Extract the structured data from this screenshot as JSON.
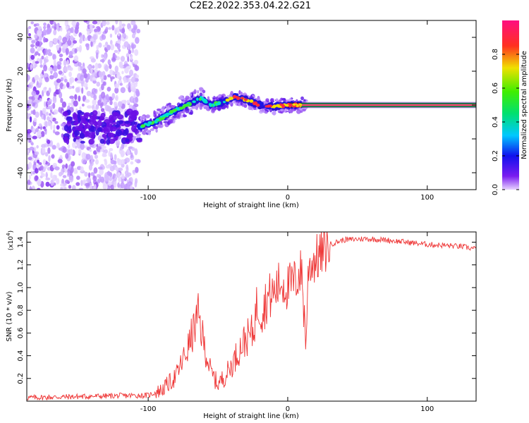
{
  "title": "C2E2.2022.353.04.22.G21",
  "chart_data": [
    {
      "type": "heatmap",
      "xlabel": "Height of straight line (km)",
      "ylabel": "Frequency (Hz)",
      "xlim": [
        -187,
        135
      ],
      "ylim": [
        -50,
        50
      ],
      "xticks": [
        -100,
        0,
        100
      ],
      "xtick_labels": [
        "-100",
        "0",
        "100"
      ],
      "yticks": [
        -40,
        -20,
        0,
        20,
        40
      ],
      "ytick_labels": [
        "-40",
        "-20",
        "0",
        "20",
        "40"
      ],
      "grid": false,
      "colorbar": {
        "label": "Normalized spectral amplitude",
        "range": [
          0,
          1
        ],
        "ticks": [
          0.0,
          0.2,
          0.4,
          0.6,
          0.8
        ],
        "tick_labels": [
          "0.0",
          "0.2",
          "0.4",
          "0.6",
          "0.8"
        ]
      },
      "doppler_trace": {
        "x": [
          -107,
          -95,
          -85,
          -75,
          -62,
          -55,
          -45,
          -38,
          -30,
          -20,
          -10,
          0,
          20,
          60,
          100,
          135
        ],
        "y": [
          -13,
          -10,
          -5,
          -1,
          4,
          0,
          2,
          5,
          3,
          0,
          -1,
          0,
          0,
          0,
          0,
          0
        ]
      }
    },
    {
      "type": "line",
      "xlabel": "Height of straight line (km)",
      "ylabel": "SNR (10 * v/v)",
      "y_multiplier_label": "(x10",
      "y_multiplier_exp": "4",
      "y_multiplier_close": ")",
      "xlim": [
        -187,
        135
      ],
      "ylim": [
        0,
        1.49
      ],
      "xticks": [
        -100,
        0,
        100
      ],
      "xtick_labels": [
        "-100",
        "0",
        "100"
      ],
      "yticks": [
        0.2,
        0.4,
        0.6,
        0.8,
        1.0,
        1.2,
        1.4
      ],
      "ytick_labels": [
        "0.2",
        "0.4",
        "0.6",
        "0.8",
        "1.0",
        "1.2",
        "1.4"
      ],
      "grid": false,
      "series": [
        {
          "color": "#ee3333",
          "x": [
            -187,
            -150,
            -110,
            -100,
            -90,
            -80,
            -72,
            -66,
            -64,
            -60,
            -55,
            -50,
            -45,
            -40,
            -35,
            -30,
            -25,
            -22,
            -18,
            -15,
            -10,
            -5,
            0,
            5,
            10,
            13,
            15,
            20,
            25,
            30,
            40,
            55,
            70,
            85,
            100,
            115,
            125,
            135
          ],
          "y": [
            0.03,
            0.04,
            0.05,
            0.05,
            0.1,
            0.22,
            0.45,
            0.68,
            0.75,
            0.5,
            0.25,
            0.15,
            0.22,
            0.32,
            0.45,
            0.55,
            0.6,
            0.85,
            0.8,
            0.9,
            0.95,
            1.05,
            1.0,
            1.05,
            1.15,
            0.5,
            1.2,
            1.25,
            1.3,
            1.38,
            1.42,
            1.43,
            1.42,
            1.4,
            1.38,
            1.37,
            1.36,
            1.34
          ]
        }
      ]
    }
  ]
}
